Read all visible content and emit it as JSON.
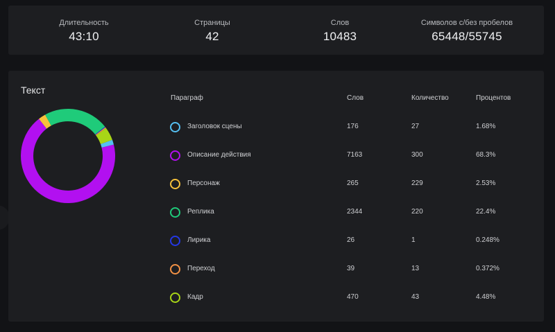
{
  "stats": [
    {
      "label": "Длительность",
      "value": "43:10"
    },
    {
      "label": "Страницы",
      "value": "42"
    },
    {
      "label": "Слов",
      "value": "10483"
    },
    {
      "label": "Символов с/без пробелов",
      "value": "65448/55745"
    }
  ],
  "panel": {
    "title": "Текст",
    "columns": {
      "paragraph": "Параграф",
      "words": "Слов",
      "count": "Количество",
      "percent": "Процентов"
    }
  },
  "rows": [
    {
      "name": "Заголовок сцены",
      "words": "176",
      "count": "27",
      "percent": "1.68%",
      "color": "#55c0f2"
    },
    {
      "name": "Описание действия",
      "words": "7163",
      "count": "300",
      "percent": "68.3%",
      "color": "#b210f0"
    },
    {
      "name": "Персонаж",
      "words": "265",
      "count": "229",
      "percent": "2.53%",
      "color": "#f7c13b"
    },
    {
      "name": "Реплика",
      "words": "2344",
      "count": "220",
      "percent": "22.4%",
      "color": "#1fcb7a"
    },
    {
      "name": "Лирика",
      "words": "26",
      "count": "1",
      "percent": "0.248%",
      "color": "#2438e6"
    },
    {
      "name": "Переход",
      "words": "39",
      "count": "13",
      "percent": "0.372%",
      "color": "#f39245"
    },
    {
      "name": "Кадр",
      "words": "470",
      "count": "43",
      "percent": "4.48%",
      "color": "#a8d517"
    }
  ],
  "chart_data": {
    "type": "pie",
    "categories": [
      "Заголовок сцены",
      "Описание действия",
      "Персонаж",
      "Реплика",
      "Лирика",
      "Переход",
      "Кадр"
    ],
    "values": [
      1.68,
      68.3,
      2.53,
      22.4,
      0.248,
      0.372,
      4.48
    ],
    "colors": [
      "#55c0f2",
      "#b210f0",
      "#f7c13b",
      "#1fcb7a",
      "#2438e6",
      "#f39245",
      "#a8d517"
    ],
    "title": "Текст"
  }
}
